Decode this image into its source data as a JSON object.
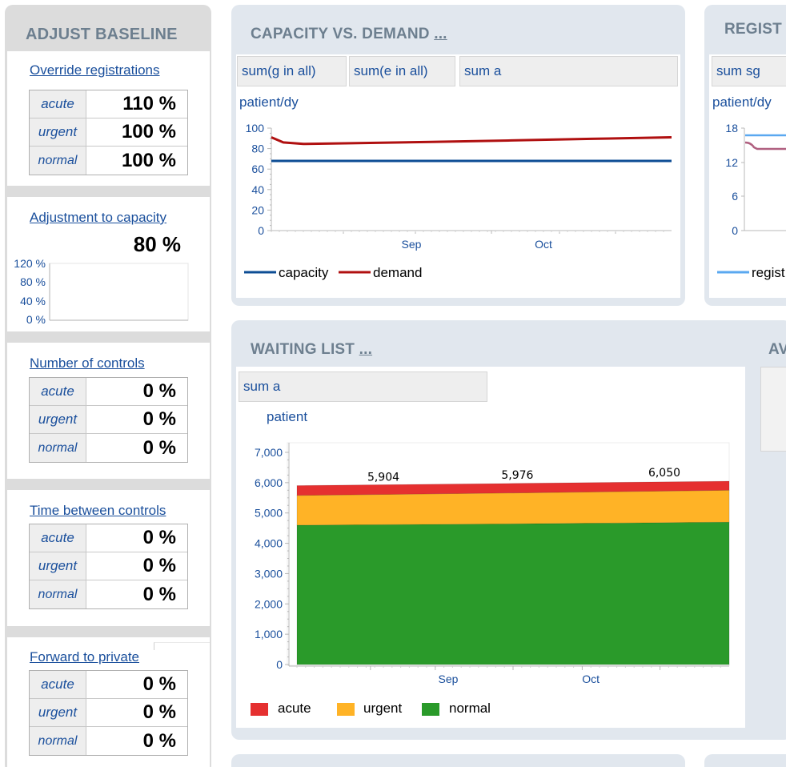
{
  "left": {
    "title": "ADJUST BASELINE",
    "override": {
      "label": "Override registrations",
      "rows": [
        {
          "name": "acute",
          "value": "110 %"
        },
        {
          "name": "urgent",
          "value": "100 %"
        },
        {
          "name": "normal",
          "value": "100 %"
        }
      ]
    },
    "capacity": {
      "label": "Adjustment to capacity",
      "value": "80 %",
      "ticks": [
        "120 %",
        "80 %",
        "40 %",
        "0 %"
      ]
    },
    "controls": {
      "label": "Number of controls",
      "rows": [
        {
          "name": "acute",
          "value": "0 %"
        },
        {
          "name": "urgent",
          "value": "0 %"
        },
        {
          "name": "normal",
          "value": "0 %"
        }
      ]
    },
    "between": {
      "label": "Time between controls",
      "rows": [
        {
          "name": "acute",
          "value": "0 %"
        },
        {
          "name": "urgent",
          "value": "0 %"
        },
        {
          "name": "normal",
          "value": "0 %"
        }
      ]
    },
    "private": {
      "label": "Forward to private",
      "rows": [
        {
          "name": "acute",
          "value": "0 %"
        },
        {
          "name": "urgent",
          "value": "0 %"
        },
        {
          "name": "normal",
          "value": "0 %"
        }
      ]
    }
  },
  "capacity_panel": {
    "title": "CAPACITY VS. DEMAND",
    "more": "...",
    "tabs": [
      "sum(g in all)",
      "sum(e in all)",
      "sum a"
    ],
    "unit": "patient/dy",
    "legend": [
      "capacity",
      "demand"
    ]
  },
  "registrations_panel": {
    "title": "REGIST",
    "tab": "sum sg",
    "unit": "patient/dy",
    "legend": "regist"
  },
  "waiting_panel": {
    "title": "WAITING LIST",
    "more": "...",
    "tab": "sum a",
    "unit": "patient",
    "legend": [
      "acute",
      "urgent",
      "normal"
    ]
  },
  "av_panel": {
    "title": "AV"
  },
  "colors": {
    "capacity": "#0d4d94",
    "demand": "#b01010",
    "registrations": "#5aa8f0",
    "acute": "#e53030",
    "urgent": "#ffb326",
    "normal": "#2a9a2a"
  },
  "chart_data": [
    {
      "type": "line",
      "title": "CAPACITY VS. DEMAND",
      "ylabel": "patient/dy",
      "ylim": [
        0,
        100
      ],
      "yticks": [
        0,
        20,
        40,
        60,
        80,
        100
      ],
      "xticks": [
        "Sep",
        "Oct"
      ],
      "x": [
        0,
        0.03,
        0.08,
        0.2,
        0.4,
        0.6,
        0.8,
        1.0
      ],
      "series": [
        {
          "name": "capacity",
          "values": [
            68,
            68,
            68,
            68,
            68,
            68,
            68,
            68
          ]
        },
        {
          "name": "demand",
          "values": [
            91,
            86,
            84.5,
            85.2,
            86.5,
            88,
            89.5,
            91
          ]
        }
      ],
      "grid": false,
      "legend": "bottom"
    },
    {
      "type": "area",
      "title": "WAITING LIST",
      "ylabel": "patient",
      "ylim": [
        0,
        7000
      ],
      "yticks": [
        0,
        1000,
        2000,
        3000,
        4000,
        5000,
        6000,
        7000
      ],
      "ytick_labels": [
        "0",
        "1,000",
        "2,000",
        "3,000",
        "4,000",
        "5,000",
        "6,000",
        "7,000"
      ],
      "xticks": [
        "Sep",
        "Oct"
      ],
      "x": [
        0,
        0.5,
        1.0
      ],
      "series": [
        {
          "name": "normal",
          "values": [
            4600,
            4640,
            4700
          ]
        },
        {
          "name": "urgent",
          "values": [
            980,
            1020,
            1050
          ]
        },
        {
          "name": "acute",
          "values": [
            324,
            316,
            300
          ]
        }
      ],
      "annotations": [
        "5,904",
        "5,976",
        "6,050"
      ],
      "stacked": true,
      "legend": "bottom"
    }
  ]
}
